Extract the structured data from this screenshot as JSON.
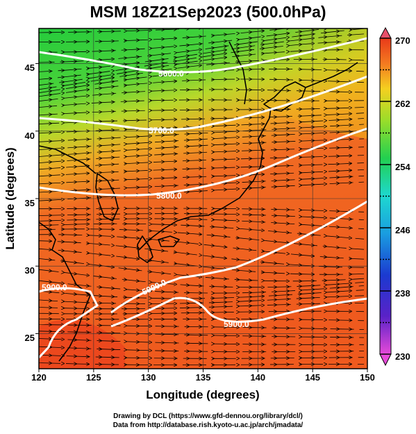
{
  "title": "MSM 18Z21Sep2023 (500.0hPa)",
  "xaxis": {
    "label": "Longitude (degrees)",
    "range": [
      120,
      150
    ],
    "ticks": [
      "120",
      "125",
      "130",
      "135",
      "140",
      "145",
      "150"
    ]
  },
  "yaxis": {
    "label": "Latitude  (degrees)",
    "range": [
      22.4,
      47.6
    ],
    "ticks": [
      "25",
      "30",
      "35",
      "40",
      "45"
    ]
  },
  "colorbar": {
    "range": [
      230,
      270
    ],
    "ticks": [
      "230",
      "238",
      "246",
      "254",
      "262",
      "270"
    ]
  },
  "contours": [
    {
      "label": "5600.0",
      "level": 5600
    },
    {
      "label": "5700.0",
      "level": 5700
    },
    {
      "label": "5800.0",
      "level": 5800
    },
    {
      "label": "5900.0",
      "level": 5900
    },
    {
      "label": "5900.0",
      "level": 5900
    },
    {
      "label": "5900.0",
      "level": 5900
    }
  ],
  "credits": {
    "line1": "Drawing by DCL (https://www.gfd-dennou.org/library/dcl/)",
    "line2": "Data from http://database.rish.kyoto-u.ac.jp/arch/jmadata/"
  },
  "colors": {
    "cold": "#2fd13a",
    "mid": "#f0c018",
    "warm": "#f05a1e",
    "contour": "#ffffff",
    "coast": "#000000"
  }
}
